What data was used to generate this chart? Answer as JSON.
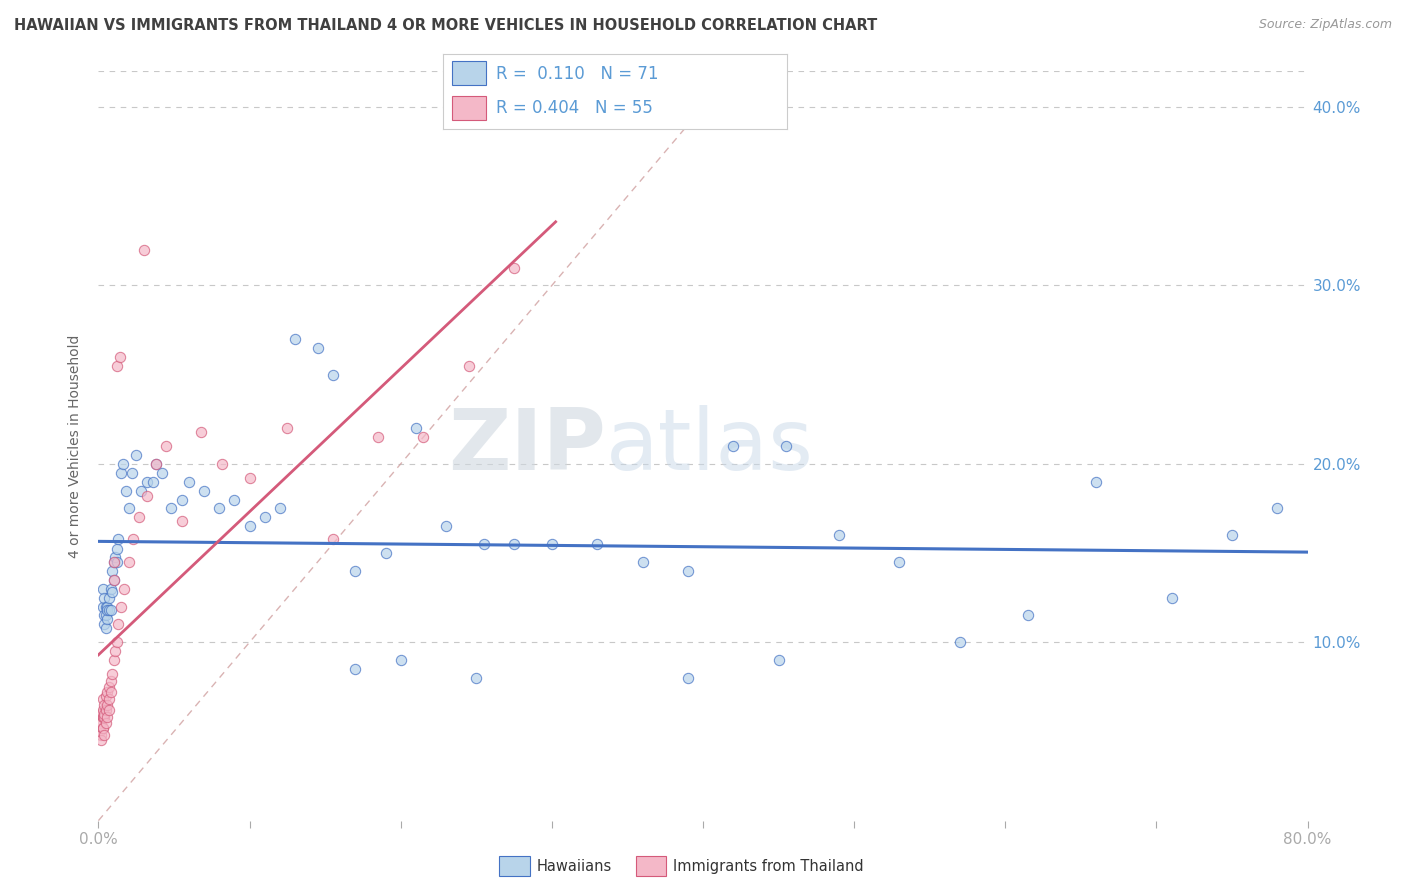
{
  "title": "HAWAIIAN VS IMMIGRANTS FROM THAILAND 4 OR MORE VEHICLES IN HOUSEHOLD CORRELATION CHART",
  "source_text": "Source: ZipAtlas.com",
  "ylabel": "4 or more Vehicles in Household",
  "xlim": [
    0.0,
    0.8
  ],
  "ylim": [
    0.0,
    0.42
  ],
  "xticks": [
    0.0,
    0.1,
    0.2,
    0.3,
    0.4,
    0.5,
    0.6,
    0.7,
    0.8
  ],
  "yticks": [
    0.0,
    0.1,
    0.2,
    0.3,
    0.4
  ],
  "yticklabels": [
    "",
    "10.0%",
    "20.0%",
    "30.0%",
    "40.0%"
  ],
  "hawaiian_R": "0.110",
  "hawaiian_N": "71",
  "thailand_R": "0.404",
  "thailand_N": "55",
  "legend_label_1": "Hawaiians",
  "legend_label_2": "Immigrants from Thailand",
  "hawaiian_color": "#b8d4ea",
  "hawaii_line_color": "#4472c4",
  "thailand_color": "#f4b8c8",
  "thailand_line_color": "#d45a7a",
  "ref_line_color": "#d0a0a0",
  "background_color": "#ffffff",
  "grid_color": "#c8c8c8",
  "title_color": "#404040",
  "axis_color": "#5b9bd5",
  "marker_size": 55,
  "hawaiian_x": [
    0.003,
    0.003,
    0.004,
    0.004,
    0.004,
    0.005,
    0.005,
    0.005,
    0.006,
    0.006,
    0.006,
    0.007,
    0.007,
    0.008,
    0.008,
    0.009,
    0.009,
    0.01,
    0.01,
    0.011,
    0.012,
    0.012,
    0.013,
    0.015,
    0.016,
    0.018,
    0.02,
    0.022,
    0.025,
    0.028,
    0.032,
    0.036,
    0.038,
    0.042,
    0.048,
    0.055,
    0.06,
    0.07,
    0.08,
    0.09,
    0.1,
    0.11,
    0.12,
    0.13,
    0.145,
    0.155,
    0.17,
    0.19,
    0.21,
    0.23,
    0.255,
    0.275,
    0.3,
    0.33,
    0.36,
    0.39,
    0.42,
    0.455,
    0.49,
    0.53,
    0.57,
    0.615,
    0.66,
    0.71,
    0.75,
    0.78,
    0.39,
    0.45,
    0.17,
    0.2,
    0.25
  ],
  "hawaiian_y": [
    0.13,
    0.12,
    0.125,
    0.115,
    0.11,
    0.12,
    0.115,
    0.108,
    0.12,
    0.113,
    0.118,
    0.118,
    0.125,
    0.13,
    0.118,
    0.128,
    0.14,
    0.145,
    0.135,
    0.148,
    0.152,
    0.145,
    0.158,
    0.195,
    0.2,
    0.185,
    0.175,
    0.195,
    0.205,
    0.185,
    0.19,
    0.19,
    0.2,
    0.195,
    0.175,
    0.18,
    0.19,
    0.185,
    0.175,
    0.18,
    0.165,
    0.17,
    0.175,
    0.27,
    0.265,
    0.25,
    0.14,
    0.15,
    0.22,
    0.165,
    0.155,
    0.155,
    0.155,
    0.155,
    0.145,
    0.14,
    0.21,
    0.21,
    0.16,
    0.145,
    0.1,
    0.115,
    0.19,
    0.125,
    0.16,
    0.175,
    0.08,
    0.09,
    0.085,
    0.09,
    0.08
  ],
  "thailand_x": [
    0.001,
    0.001,
    0.002,
    0.002,
    0.002,
    0.002,
    0.003,
    0.003,
    0.003,
    0.003,
    0.003,
    0.003,
    0.004,
    0.004,
    0.004,
    0.004,
    0.005,
    0.005,
    0.005,
    0.006,
    0.006,
    0.006,
    0.007,
    0.007,
    0.007,
    0.008,
    0.008,
    0.009,
    0.01,
    0.011,
    0.012,
    0.013,
    0.015,
    0.017,
    0.02,
    0.023,
    0.027,
    0.032,
    0.038,
    0.045,
    0.055,
    0.068,
    0.082,
    0.1,
    0.125,
    0.155,
    0.185,
    0.215,
    0.245,
    0.275,
    0.01,
    0.01,
    0.012,
    0.014,
    0.03
  ],
  "thailand_y": [
    0.055,
    0.05,
    0.06,
    0.055,
    0.048,
    0.045,
    0.062,
    0.058,
    0.052,
    0.068,
    0.058,
    0.052,
    0.058,
    0.065,
    0.06,
    0.048,
    0.07,
    0.062,
    0.055,
    0.072,
    0.065,
    0.058,
    0.075,
    0.068,
    0.062,
    0.078,
    0.072,
    0.082,
    0.09,
    0.095,
    0.1,
    0.11,
    0.12,
    0.13,
    0.145,
    0.158,
    0.17,
    0.182,
    0.2,
    0.21,
    0.168,
    0.218,
    0.2,
    0.192,
    0.22,
    0.158,
    0.215,
    0.215,
    0.255,
    0.31,
    0.135,
    0.145,
    0.255,
    0.26,
    0.32
  ],
  "watermark_zip": "ZIP",
  "watermark_atlas": "atlas",
  "figsize": [
    14.06,
    8.92
  ],
  "dpi": 100
}
